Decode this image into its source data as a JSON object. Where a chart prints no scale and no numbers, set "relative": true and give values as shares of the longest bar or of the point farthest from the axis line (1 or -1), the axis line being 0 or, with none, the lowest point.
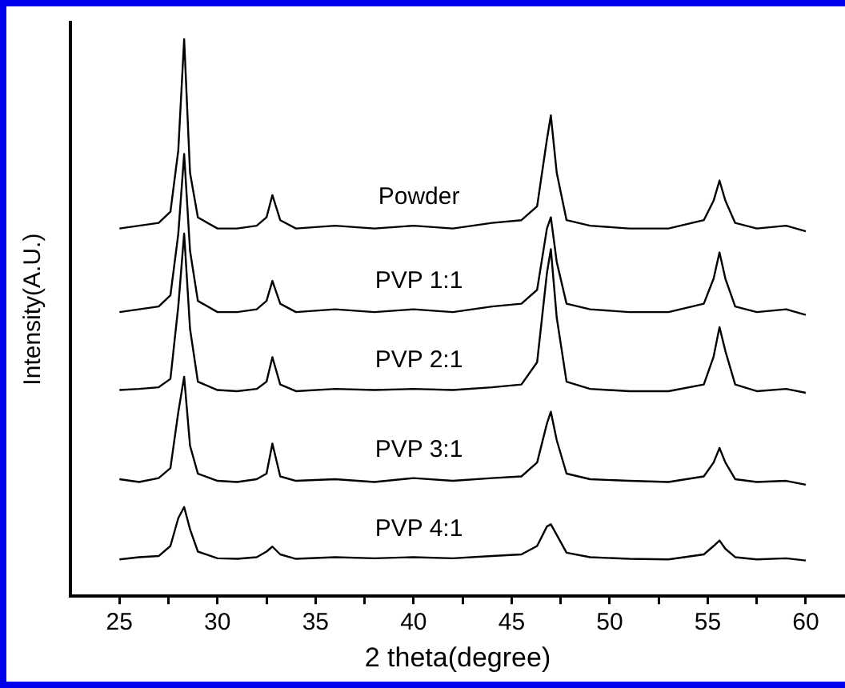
{
  "chart_data": {
    "type": "line",
    "relative": true,
    "xlabel": "2 theta(degree)",
    "ylabel": "Intensity(A.U.)",
    "xlim": [
      22.5,
      62
    ],
    "xticks": [
      25,
      {
        "value": 27.5,
        "label": null
      },
      30,
      {
        "value": 32.5,
        "label": null
      },
      35,
      {
        "value": 37.5,
        "label": null
      },
      40,
      {
        "value": 42.5,
        "label": null
      },
      45,
      {
        "value": 47.5,
        "label": null
      },
      50,
      {
        "value": 52.5,
        "label": null
      },
      55,
      {
        "value": 57.5,
        "label": null
      },
      60
    ],
    "grid": false,
    "legend": false,
    "marker": "none",
    "line_style": "solid",
    "x": [
      25,
      26,
      27,
      27.6,
      28,
      28.3,
      28.6,
      29,
      30,
      31,
      32,
      32.5,
      32.8,
      33.2,
      34,
      36,
      38,
      40,
      42,
      44,
      45.5,
      46.3,
      46.8,
      47.0,
      47.3,
      47.8,
      49,
      51,
      53,
      54.8,
      55.3,
      55.6,
      55.9,
      56.4,
      57.5,
      59,
      60
    ],
    "series": [
      {
        "name": "Powder",
        "color": "#000000",
        "values": [
          0.66,
          0.665,
          0.67,
          0.69,
          0.8,
          1.0,
          0.76,
          0.68,
          0.66,
          0.66,
          0.665,
          0.68,
          0.72,
          0.675,
          0.66,
          0.665,
          0.66,
          0.665,
          0.66,
          0.67,
          0.675,
          0.7,
          0.82,
          0.863,
          0.76,
          0.675,
          0.665,
          0.66,
          0.66,
          0.675,
          0.71,
          0.746,
          0.71,
          0.67,
          0.66,
          0.665,
          0.655
        ]
      },
      {
        "name": "PVP 1:1",
        "color": "#000000",
        "values": [
          0.51,
          0.515,
          0.52,
          0.54,
          0.65,
          0.794,
          0.62,
          0.53,
          0.51,
          0.51,
          0.515,
          0.53,
          0.566,
          0.525,
          0.51,
          0.515,
          0.51,
          0.515,
          0.51,
          0.52,
          0.525,
          0.55,
          0.66,
          0.68,
          0.6,
          0.525,
          0.515,
          0.51,
          0.51,
          0.525,
          0.57,
          0.617,
          0.57,
          0.52,
          0.51,
          0.515,
          0.505
        ]
      },
      {
        "name": "PVP 2:1",
        "color": "#000000",
        "values": [
          0.37,
          0.372,
          0.375,
          0.39,
          0.52,
          0.651,
          0.48,
          0.385,
          0.37,
          0.368,
          0.372,
          0.385,
          0.429,
          0.38,
          0.368,
          0.372,
          0.37,
          0.372,
          0.37,
          0.375,
          0.38,
          0.42,
          0.58,
          0.623,
          0.5,
          0.385,
          0.372,
          0.368,
          0.368,
          0.38,
          0.43,
          0.483,
          0.44,
          0.38,
          0.368,
          0.372,
          0.365
        ]
      },
      {
        "name": "PVP 3:1",
        "color": "#000000",
        "values": [
          0.21,
          0.205,
          0.212,
          0.23,
          0.33,
          0.394,
          0.27,
          0.22,
          0.207,
          0.205,
          0.21,
          0.22,
          0.274,
          0.215,
          0.207,
          0.21,
          0.205,
          0.212,
          0.207,
          0.212,
          0.215,
          0.24,
          0.31,
          0.331,
          0.28,
          0.22,
          0.21,
          0.207,
          0.205,
          0.215,
          0.24,
          0.266,
          0.24,
          0.21,
          0.205,
          0.207,
          0.2
        ]
      },
      {
        "name": "PVP 4:1",
        "color": "#000000",
        "values": [
          0.066,
          0.07,
          0.072,
          0.09,
          0.14,
          0.16,
          0.12,
          0.08,
          0.068,
          0.067,
          0.07,
          0.08,
          0.089,
          0.075,
          0.067,
          0.07,
          0.068,
          0.07,
          0.068,
          0.072,
          0.075,
          0.09,
          0.125,
          0.129,
          0.11,
          0.078,
          0.07,
          0.067,
          0.066,
          0.075,
          0.09,
          0.1,
          0.085,
          0.07,
          0.066,
          0.068,
          0.064
        ]
      }
    ]
  }
}
